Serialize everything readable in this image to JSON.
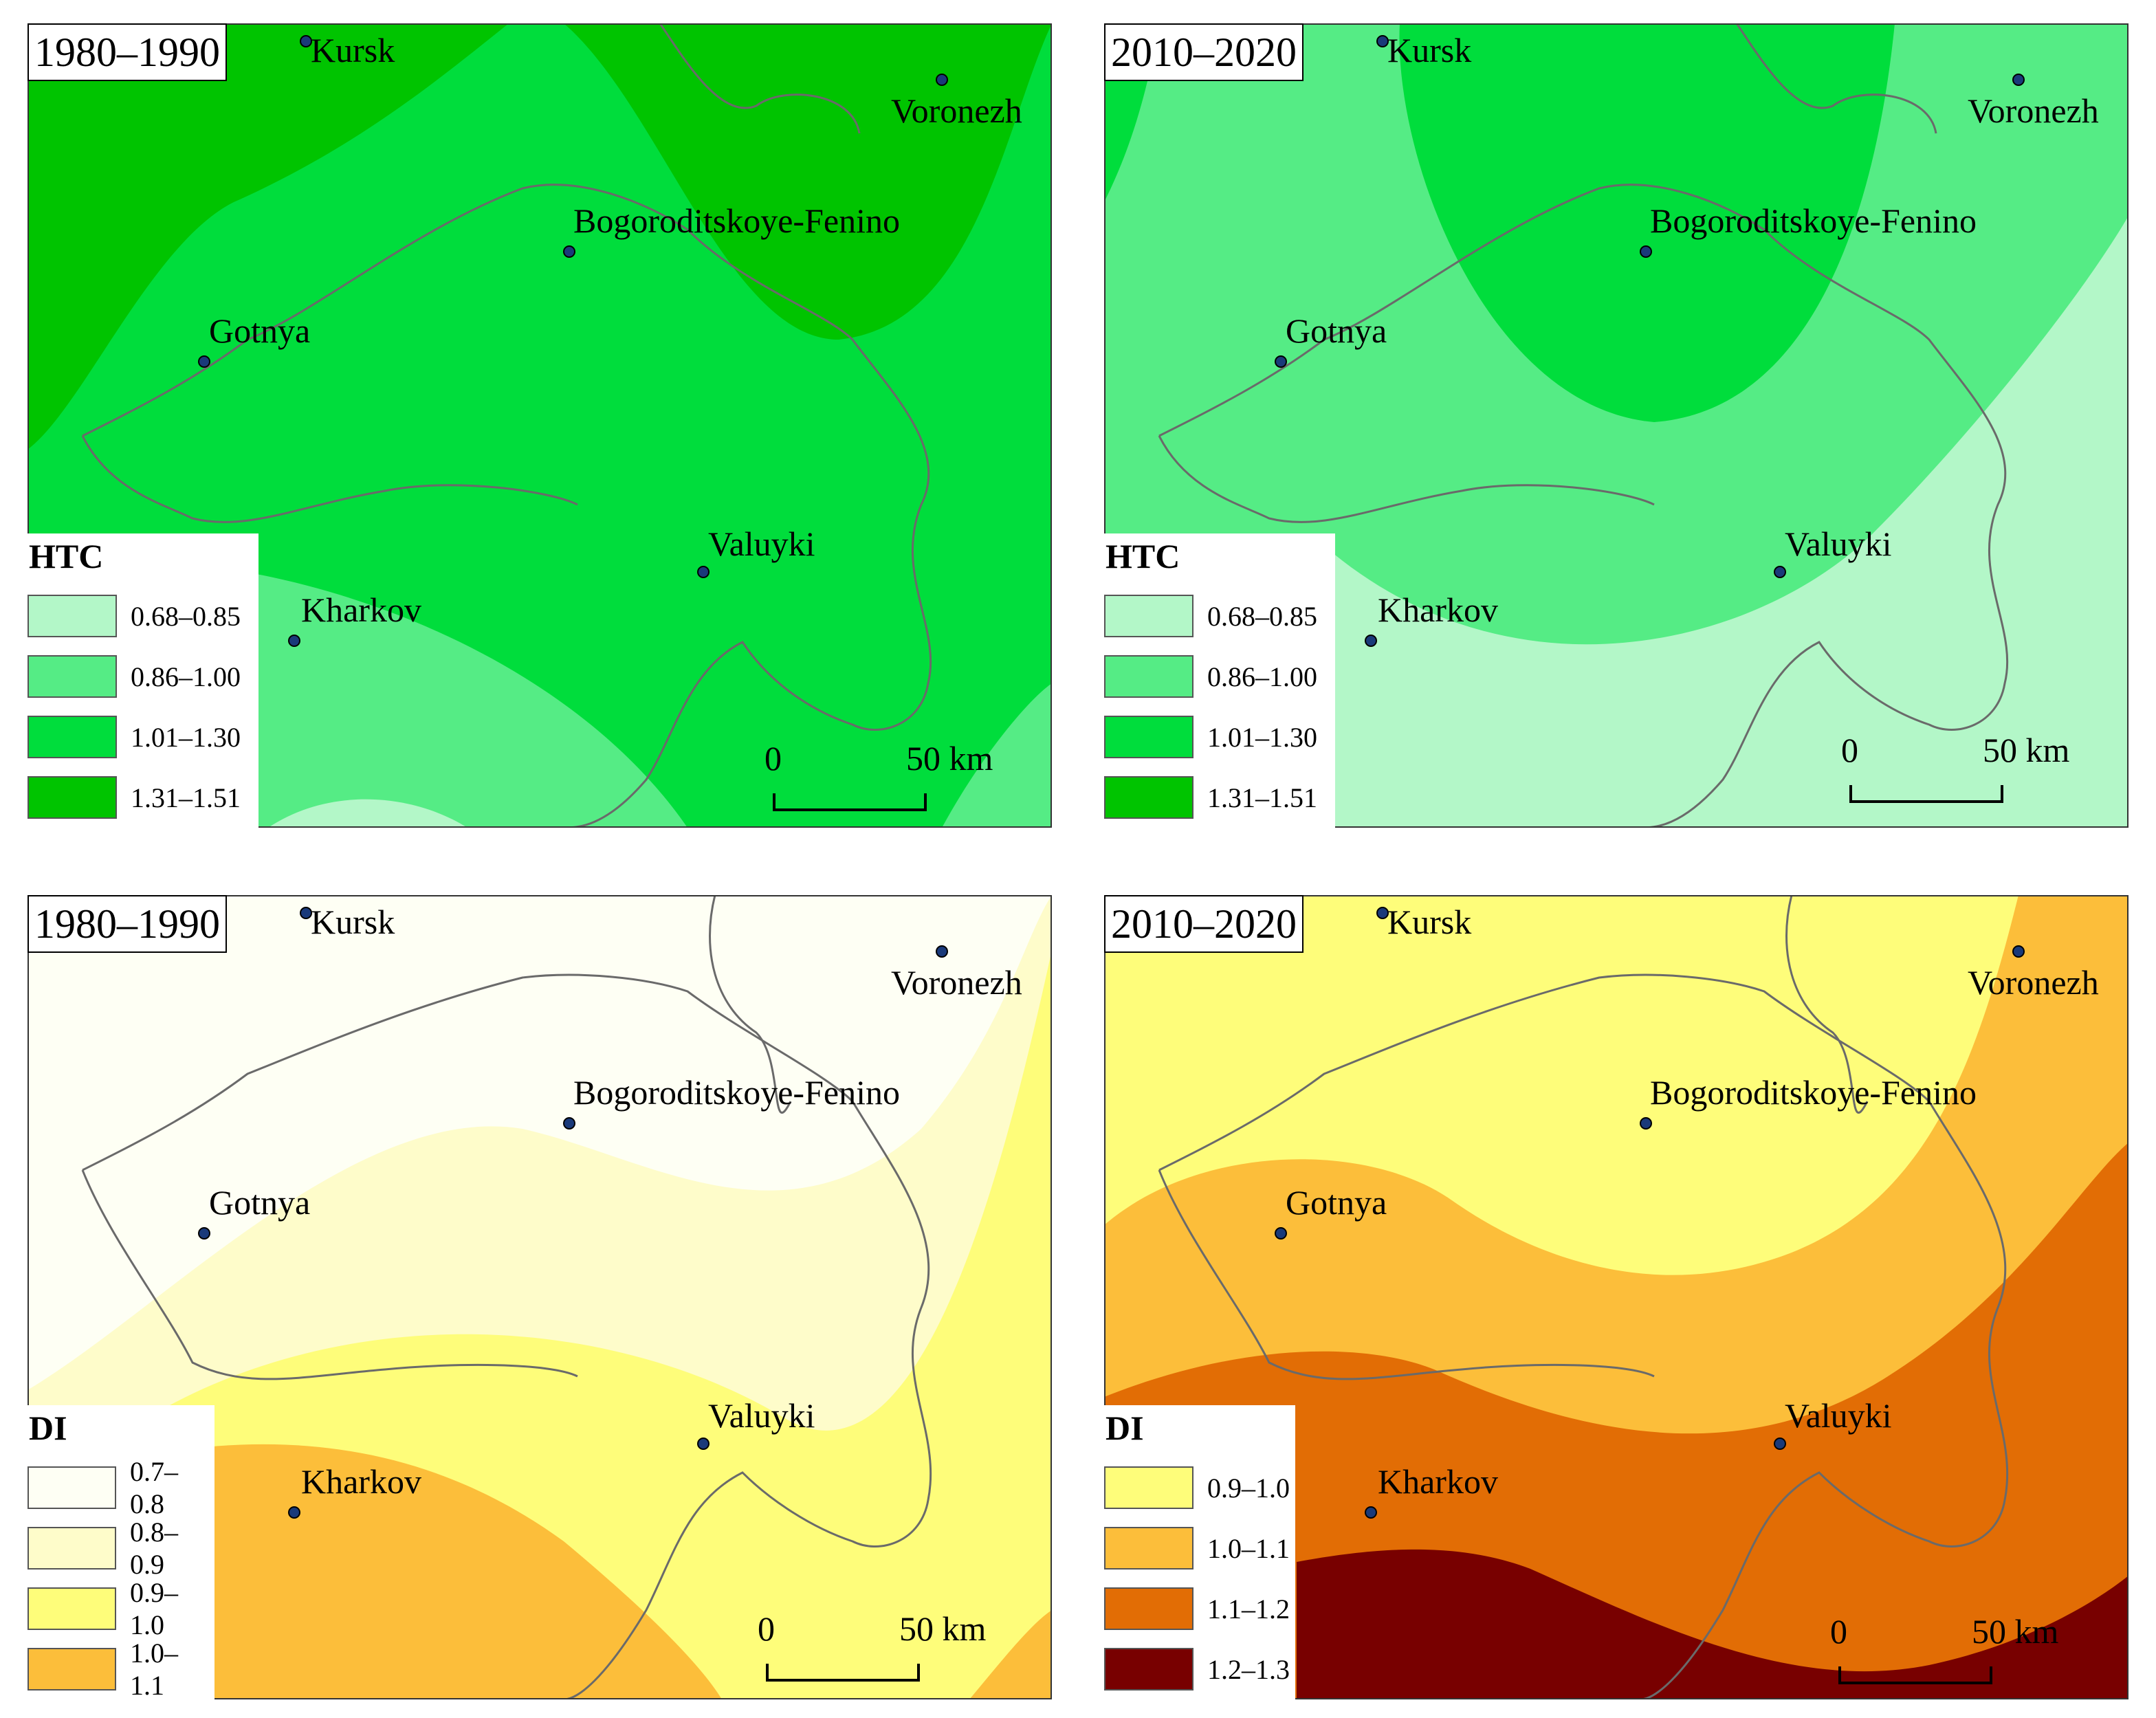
{
  "cities": [
    {
      "id": "kursk",
      "name": "Kursk"
    },
    {
      "id": "voronezh",
      "name": "Voronezh"
    },
    {
      "id": "bogorod",
      "name": "Bogoroditskoye-Fenino"
    },
    {
      "id": "gotnya",
      "name": "Gotnya"
    },
    {
      "id": "valuyki",
      "name": "Valuyki"
    },
    {
      "id": "kharkov",
      "name": "Kharkov"
    }
  ],
  "scale_bar": {
    "zero": "0",
    "end": "50 km"
  },
  "htc_legend": {
    "title": "HTC",
    "classes": [
      {
        "label": "0.68–0.85",
        "color": "#b3f7c8"
      },
      {
        "label": "0.86–1.00",
        "color": "#55ec85"
      },
      {
        "label": "1.01–1.30",
        "color": "#00dd3c"
      },
      {
        "label": "1.31–1.51",
        "color": "#00c400"
      }
    ]
  },
  "di_legend_1980": {
    "title": "DI",
    "classes": [
      {
        "label": "0.7–0.8",
        "color": "#fefff4"
      },
      {
        "label": "0.8–0.9",
        "color": "#fefcca"
      },
      {
        "label": "0.9–1.0",
        "color": "#fefd7a"
      },
      {
        "label": "1.0–1.1",
        "color": "#fcbe3a"
      }
    ]
  },
  "di_legend_2010": {
    "title": "DI",
    "classes": [
      {
        "label": "0.9–1.0",
        "color": "#fefd7a"
      },
      {
        "label": "1.0–1.1",
        "color": "#fcbe3a"
      },
      {
        "label": "1.1–1.2",
        "color": "#e26d05"
      },
      {
        "label": "1.2–1.3",
        "color": "#780000"
      }
    ]
  },
  "panels": [
    {
      "id": "htc-1980",
      "period": "1980–1990"
    },
    {
      "id": "htc-2010",
      "period": "2010–2020"
    },
    {
      "id": "di-1980",
      "period": "1980–1990"
    },
    {
      "id": "di-2010",
      "period": "2010–2020"
    }
  ]
}
